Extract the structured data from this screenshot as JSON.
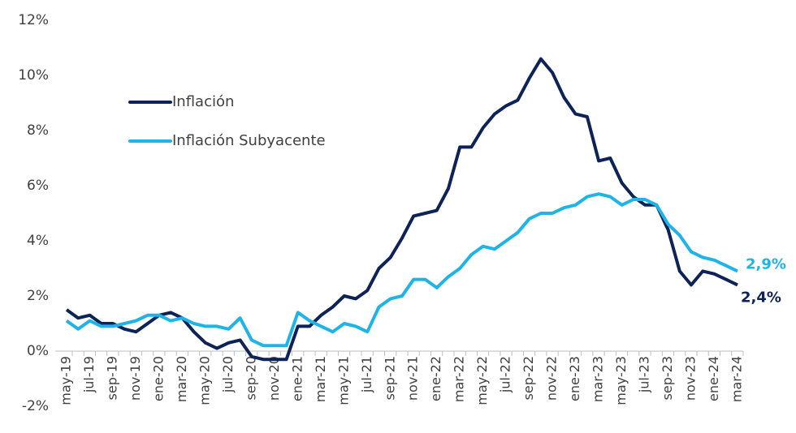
{
  "chart_data": {
    "type": "line",
    "categories": [
      "may-19",
      null,
      "jul-19",
      null,
      "sep-19",
      null,
      "nov-19",
      null,
      "ene-20",
      null,
      "mar-20",
      null,
      "may-20",
      null,
      "jul-20",
      null,
      "sep-20",
      null,
      "nov-20",
      null,
      "ene-21",
      null,
      "mar-21",
      null,
      "may-21",
      null,
      "jul-21",
      null,
      "sep-21",
      null,
      "nov-21",
      null,
      "ene-22",
      null,
      "mar-22",
      null,
      "may-22",
      null,
      "jul-22",
      null,
      "sep-22",
      null,
      "nov-22",
      null,
      "ene-23",
      null,
      "mar-23",
      null,
      "may-23",
      null,
      "jul-23",
      null,
      "sep-23",
      null,
      "nov-23",
      null,
      "ene-24",
      null,
      "mar-24"
    ],
    "series": [
      {
        "name": "Inflación",
        "color": "#0d2257",
        "values": [
          1.5,
          1.2,
          1.3,
          1.0,
          1.0,
          0.8,
          0.7,
          1.0,
          1.3,
          1.4,
          1.2,
          0.7,
          0.3,
          0.1,
          0.3,
          0.4,
          -0.2,
          -0.3,
          -0.3,
          -0.3,
          0.9,
          0.9,
          1.3,
          1.6,
          2.0,
          1.9,
          2.2,
          3.0,
          3.4,
          4.1,
          4.9,
          5.0,
          5.1,
          5.9,
          7.4,
          7.4,
          8.1,
          8.6,
          8.9,
          9.1,
          9.9,
          10.6,
          10.1,
          9.2,
          8.6,
          8.5,
          6.9,
          7.0,
          6.1,
          5.6,
          5.3,
          5.3,
          4.4,
          2.9,
          2.4,
          2.9,
          2.8,
          2.6,
          2.4
        ],
        "value_labels": [
          null,
          null,
          null,
          null,
          null,
          null,
          null,
          null,
          null,
          null,
          null,
          null,
          null,
          null,
          null,
          null,
          null,
          null,
          null,
          null,
          null,
          null,
          null,
          null,
          null,
          null,
          null,
          null,
          null,
          null,
          null,
          null,
          null,
          null,
          null,
          null,
          null,
          null,
          null,
          null,
          null,
          null,
          null,
          null,
          null,
          null,
          null,
          null,
          null,
          null,
          null,
          null,
          null,
          null,
          null,
          null,
          null,
          null,
          "2,4%"
        ]
      },
      {
        "name": "Inflación Subyacente",
        "color": "#1fb4e8",
        "values": [
          1.1,
          0.8,
          1.1,
          0.9,
          0.9,
          1.0,
          1.1,
          1.3,
          1.3,
          1.1,
          1.2,
          1.0,
          0.9,
          0.9,
          0.8,
          1.2,
          0.4,
          0.2,
          0.2,
          0.2,
          1.4,
          1.1,
          0.9,
          0.7,
          1.0,
          0.9,
          0.7,
          1.6,
          1.9,
          2.0,
          2.6,
          2.6,
          2.3,
          2.7,
          3.0,
          3.5,
          3.8,
          3.7,
          4.0,
          4.3,
          4.8,
          5.0,
          5.0,
          5.2,
          5.3,
          5.6,
          5.7,
          5.6,
          5.3,
          5.5,
          5.5,
          5.3,
          4.6,
          4.2,
          3.6,
          3.4,
          3.3,
          3.1,
          2.9
        ],
        "value_labels": [
          null,
          null,
          null,
          null,
          null,
          null,
          null,
          null,
          null,
          null,
          null,
          null,
          null,
          null,
          null,
          null,
          null,
          null,
          null,
          null,
          null,
          null,
          null,
          null,
          null,
          null,
          null,
          null,
          null,
          null,
          null,
          null,
          null,
          null,
          null,
          null,
          null,
          null,
          null,
          null,
          null,
          null,
          null,
          null,
          null,
          null,
          null,
          null,
          null,
          null,
          null,
          null,
          null,
          null,
          null,
          null,
          null,
          null,
          "2,9%"
        ]
      }
    ],
    "ylim": [
      -2,
      12
    ],
    "yticks": [
      {
        "value": -2,
        "label": "-2%"
      },
      {
        "value": 0,
        "label": "0%"
      },
      {
        "value": 2,
        "label": "2%"
      },
      {
        "value": 4,
        "label": "4%"
      },
      {
        "value": 6,
        "label": "6%"
      },
      {
        "value": 8,
        "label": "8%"
      },
      {
        "value": 10,
        "label": "10%"
      },
      {
        "value": 12,
        "label": "12%"
      }
    ],
    "grid": false,
    "legend": "upper left"
  }
}
